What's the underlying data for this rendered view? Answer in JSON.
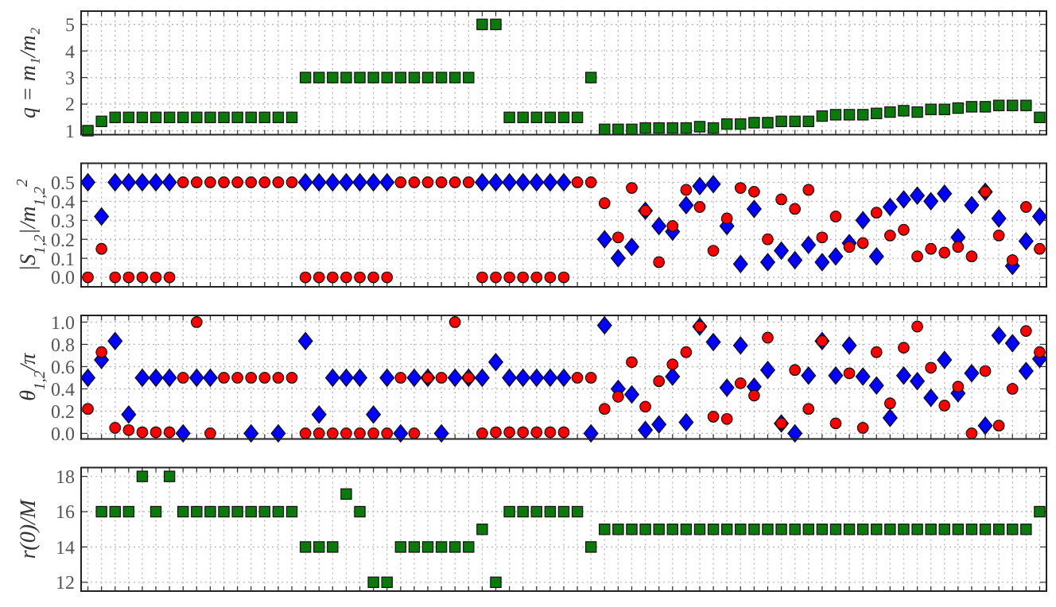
{
  "chart_data": [
    {
      "type": "scatter",
      "ylabel": "q = m₁/m₂",
      "ylim": [
        0.85,
        5.5
      ],
      "yticks": [
        1,
        2,
        3,
        4,
        5
      ],
      "grid": true,
      "tick_labels": "y",
      "marker": "square",
      "categories": [
        null,
        null,
        null,
        null,
        null,
        null,
        null,
        null,
        null,
        null,
        null,
        null,
        null,
        null,
        null,
        null,
        null,
        null,
        null,
        null,
        null,
        null,
        null,
        null,
        null,
        null,
        null,
        null,
        null,
        null,
        null,
        null,
        null,
        null,
        null,
        null,
        null,
        null,
        null,
        null,
        null,
        null,
        null,
        null,
        null,
        null,
        null,
        null,
        null,
        null,
        null,
        null,
        null,
        null,
        null,
        null,
        null,
        null,
        null,
        null,
        null,
        null,
        null,
        null,
        null,
        null,
        null,
        null,
        null,
        null,
        null
      ],
      "series": [
        {
          "color": "#0a7a0a",
          "values": [
            1,
            1.35,
            1.5,
            1.5,
            1.5,
            1.5,
            1.5,
            1.5,
            1.5,
            1.5,
            1.5,
            1.5,
            1.5,
            1.5,
            1.5,
            1.5,
            3,
            3,
            3,
            3,
            3,
            3,
            3,
            3,
            3,
            3,
            3,
            3,
            3,
            5,
            5,
            1.5,
            1.5,
            1.5,
            1.5,
            1.5,
            1.5,
            3,
            1.05,
            1.05,
            1.05,
            1.1,
            1.1,
            1.1,
            1.1,
            1.15,
            1.1,
            1.25,
            1.25,
            1.3,
            1.3,
            1.35,
            1.35,
            1.35,
            1.55,
            1.6,
            1.6,
            1.6,
            1.65,
            1.7,
            1.75,
            1.7,
            1.8,
            1.8,
            1.85,
            1.9,
            1.9,
            1.95,
            1.95,
            1.95,
            1.5
          ]
        }
      ]
    },
    {
      "type": "scatter",
      "ylabel": "|S$_{1,2}$|/m$_{1,2}$$^{2}$",
      "ylim": [
        -0.05,
        0.6
      ],
      "yticks": [
        {
          "value": 0,
          "label": "0.0"
        },
        {
          "value": 0.1,
          "label": "0.1"
        },
        {
          "value": 0.2,
          "label": "0.2"
        },
        {
          "value": 0.3,
          "label": "0.3"
        },
        {
          "value": 0.4,
          "label": "0.4"
        },
        {
          "value": 0.5,
          "label": "0.5"
        }
      ],
      "grid": true,
      "tick_labels": "y",
      "categories": [
        null,
        null,
        null,
        null,
        null,
        null,
        null,
        null,
        null,
        null,
        null,
        null,
        null,
        null,
        null,
        null,
        null,
        null,
        null,
        null,
        null,
        null,
        null,
        null,
        null,
        null,
        null,
        null,
        null,
        null,
        null,
        null,
        null,
        null,
        null,
        null,
        null,
        null,
        null,
        null,
        null,
        null,
        null,
        null,
        null,
        null,
        null,
        null,
        null,
        null,
        null,
        null,
        null,
        null,
        null,
        null,
        null,
        null,
        null,
        null,
        null,
        null,
        null,
        null,
        null,
        null,
        null,
        null,
        null,
        null,
        null
      ],
      "series": [
        {
          "color": "#0000ff",
          "marker": "diamond",
          "values": [
            0.5,
            0.32,
            0.5,
            0.5,
            0.5,
            0.5,
            0.5,
            null,
            null,
            null,
            null,
            null,
            null,
            null,
            null,
            null,
            0.5,
            0.5,
            0.5,
            0.5,
            0.5,
            0.5,
            0.5,
            null,
            null,
            null,
            null,
            null,
            null,
            0.5,
            0.5,
            0.5,
            0.5,
            0.5,
            0.5,
            0.5,
            null,
            null,
            0.2,
            0.1,
            0.16,
            0.35,
            0.27,
            0.24,
            0.38,
            0.48,
            0.49,
            0.27,
            0.07,
            0.36,
            0.08,
            0.14,
            0.09,
            0.17,
            0.08,
            0.11,
            0.18,
            0.3,
            0.11,
            0.37,
            0.41,
            0.43,
            0.4,
            0.44,
            0.21,
            0.38,
            0.45,
            0.31,
            0.06,
            0.19,
            0.32
          ]
        },
        {
          "color": "#ff0000",
          "marker": "circle",
          "values": [
            0,
            0.15,
            0,
            0,
            0,
            0,
            0,
            0.5,
            0.5,
            0.5,
            0.5,
            0.5,
            0.5,
            0.5,
            0.5,
            0.5,
            0,
            0,
            0,
            0,
            0,
            0,
            0,
            0.5,
            0.5,
            0.5,
            0.5,
            0.5,
            0.5,
            0,
            0,
            0,
            0,
            0,
            0,
            0,
            0.5,
            0.5,
            0.39,
            0.21,
            0.47,
            0.35,
            0.08,
            0.27,
            0.46,
            0.37,
            0.14,
            0.31,
            0.47,
            0.45,
            0.2,
            0.41,
            0.36,
            0.46,
            0.21,
            0.32,
            0.16,
            0.18,
            0.34,
            0.22,
            0.25,
            0.11,
            0.15,
            0.13,
            0.16,
            0.11,
            0.45,
            0.22,
            0.09,
            0.37,
            0.15
          ]
        }
      ]
    },
    {
      "type": "scatter",
      "ylabel": "θ$_{1,2}$/π",
      "ylim": [
        -0.05,
        1.06
      ],
      "yticks": [
        {
          "value": 0,
          "label": "0.0"
        },
        {
          "value": 0.2,
          "label": "0.2"
        },
        {
          "value": 0.4,
          "label": "0.4"
        },
        {
          "value": 0.6,
          "label": "0.6"
        },
        {
          "value": 0.8,
          "label": "0.8"
        },
        {
          "value": 1,
          "label": "1.0"
        }
      ],
      "grid": true,
      "tick_labels": "y",
      "categories": [
        null,
        null,
        null,
        null,
        null,
        null,
        null,
        null,
        null,
        null,
        null,
        null,
        null,
        null,
        null,
        null,
        null,
        null,
        null,
        null,
        null,
        null,
        null,
        null,
        null,
        null,
        null,
        null,
        null,
        null,
        null,
        null,
        null,
        null,
        null,
        null,
        null,
        null,
        null,
        null,
        null,
        null,
        null,
        null,
        null,
        null,
        null,
        null,
        null,
        null,
        null,
        null,
        null,
        null,
        null,
        null,
        null,
        null,
        null,
        null,
        null,
        null,
        null,
        null,
        null,
        null,
        null,
        null,
        null,
        null,
        null
      ],
      "series": [
        {
          "color": "#0000ff",
          "marker": "diamond",
          "values": [
            0.5,
            0.66,
            0.83,
            0.17,
            0.5,
            0.5,
            0.5,
            0,
            0.5,
            0.5,
            null,
            null,
            0,
            null,
            0,
            null,
            0.83,
            0.17,
            0.5,
            0.5,
            0.5,
            0.17,
            0.5,
            0,
            0.5,
            0.5,
            0,
            0.5,
            0.5,
            0.5,
            0.64,
            0.5,
            0.5,
            0.5,
            0.5,
            0.5,
            null,
            0,
            0.97,
            0.4,
            0.35,
            0.03,
            0.08,
            0.51,
            0.1,
            0.96,
            0.82,
            0.41,
            0.79,
            0.42,
            0.57,
            0.09,
            0,
            0.52,
            0.83,
            0.52,
            0.79,
            0.51,
            0.43,
            0.14,
            0.52,
            0.47,
            0.32,
            0.66,
            0.36,
            0.54,
            0.07,
            0.88,
            0.81,
            0.56,
            0.67
          ]
        },
        {
          "color": "#ff0000",
          "marker": "circle",
          "values": [
            0.22,
            0.73,
            0.05,
            0.03,
            0.01,
            0.01,
            0.01,
            0.5,
            1,
            0,
            0.5,
            0.5,
            0.5,
            0.5,
            0.5,
            0.5,
            0,
            0,
            0,
            0,
            0,
            0,
            0,
            0.5,
            0,
            0.5,
            0.5,
            1,
            0.5,
            0,
            0.01,
            0.01,
            0.01,
            0.01,
            0.01,
            0.01,
            0.5,
            0.5,
            0.22,
            0.33,
            0.64,
            0.24,
            0.47,
            0.62,
            0.73,
            0.96,
            0.15,
            0.13,
            0.45,
            0.34,
            0.86,
            0.09,
            0.57,
            0.22,
            0.83,
            0.09,
            0.54,
            0.05,
            0.73,
            0.27,
            0.77,
            0.96,
            0.59,
            0.25,
            0.42,
            0,
            0.56,
            0.07,
            0.4,
            0.92,
            0.73
          ]
        }
      ]
    },
    {
      "type": "scatter",
      "ylabel": "r(0)/M",
      "ylim": [
        11.5,
        18.5
      ],
      "yticks": [
        12,
        14,
        16,
        18
      ],
      "grid": true,
      "tick_labels": "y",
      "marker": "square",
      "categories": [
        null,
        null,
        null,
        null,
        null,
        null,
        null,
        null,
        null,
        null,
        null,
        null,
        null,
        null,
        null,
        null,
        null,
        null,
        null,
        null,
        null,
        null,
        null,
        null,
        null,
        null,
        null,
        null,
        null,
        null,
        null,
        null,
        null,
        null,
        null,
        null,
        null,
        null,
        null,
        null,
        null,
        null,
        null,
        null,
        null,
        null,
        null,
        null,
        null,
        null,
        null,
        null,
        null,
        null,
        null,
        null,
        null,
        null,
        null,
        null,
        null,
        null,
        null,
        null,
        null,
        null,
        null,
        null,
        null,
        null,
        null
      ],
      "series": [
        {
          "color": "#0a7a0a",
          "values": [
            null,
            16,
            16,
            16,
            18,
            16,
            18,
            16,
            16,
            16,
            16,
            16,
            16,
            16,
            16,
            16,
            14,
            14,
            14,
            17,
            16,
            12,
            12,
            14,
            14,
            14,
            14,
            14,
            14,
            15,
            12,
            16,
            16,
            16,
            16,
            16,
            16,
            14,
            15,
            15,
            15,
            15,
            15,
            15,
            15,
            15,
            15,
            15,
            15,
            15,
            15,
            15,
            15,
            15,
            15,
            15,
            15,
            15,
            15,
            15,
            15,
            15,
            15,
            15,
            15,
            15,
            15,
            15,
            15,
            15,
            16
          ]
        }
      ]
    }
  ]
}
